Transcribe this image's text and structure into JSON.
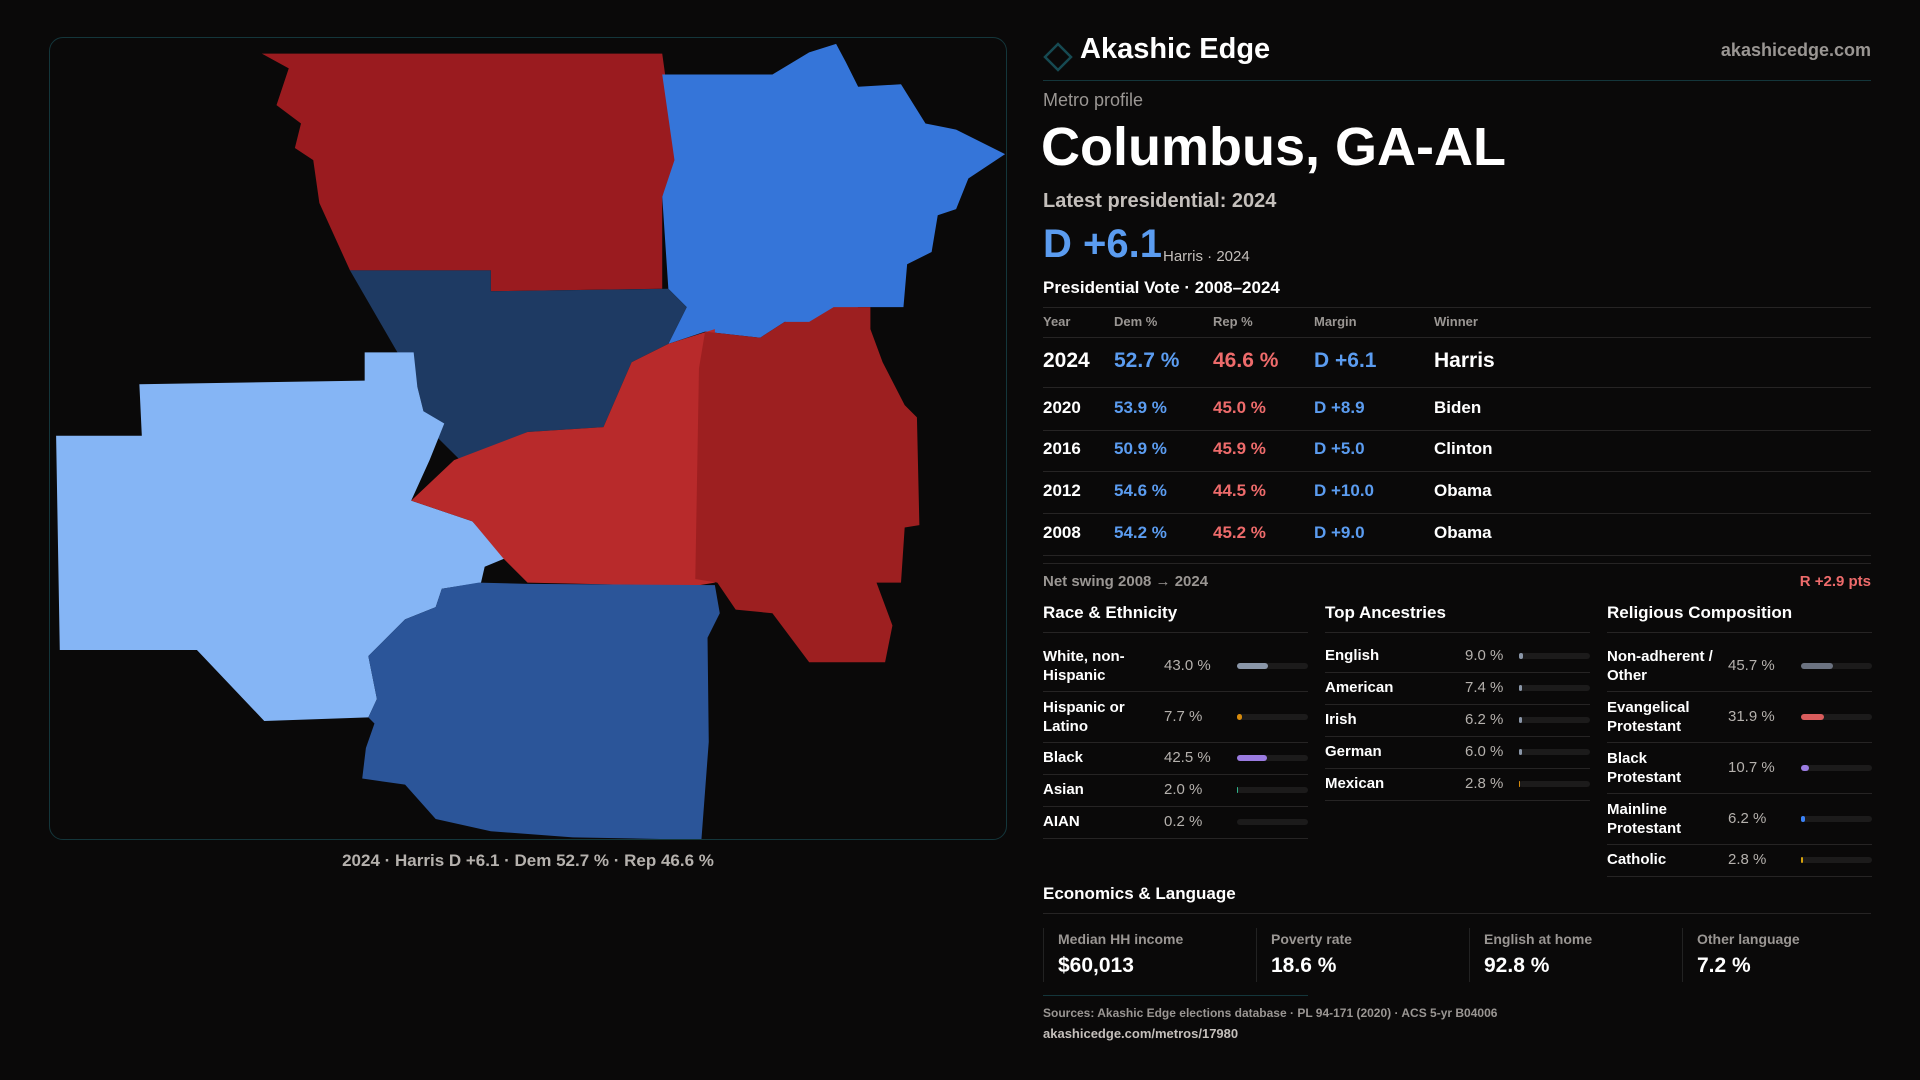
{
  "brand": {
    "name": "Akashic Edge",
    "site": "akashicedge.com"
  },
  "kicker": "Metro profile",
  "title": "Columbus, GA-AL",
  "latest_label": "Latest presidential: 2024",
  "headline": {
    "margin": "D +6.1",
    "sub": "Harris · 2024"
  },
  "vote_table": {
    "title": "Presidential Vote · 2008–2024",
    "headers": [
      "Year",
      "Dem %",
      "Rep %",
      "Margin",
      "Winner"
    ],
    "rows": [
      {
        "year": "2024",
        "dem": "52.7 %",
        "rep": "46.6 %",
        "margin": "D +6.1",
        "winner": "Harris"
      },
      {
        "year": "2020",
        "dem": "53.9 %",
        "rep": "45.0 %",
        "margin": "D +8.9",
        "winner": "Biden"
      },
      {
        "year": "2016",
        "dem": "50.9 %",
        "rep": "45.9 %",
        "margin": "D +5.0",
        "winner": "Clinton"
      },
      {
        "year": "2012",
        "dem": "54.6 %",
        "rep": "44.5 %",
        "margin": "D +10.0",
        "winner": "Obama"
      },
      {
        "year": "2008",
        "dem": "54.2 %",
        "rep": "45.2 %",
        "margin": "D +9.0",
        "winner": "Obama"
      }
    ]
  },
  "swing": {
    "label": "Net swing 2008 → 2024",
    "value": "R +2.9 pts"
  },
  "race": {
    "title": "Race & Ethnicity",
    "items": [
      {
        "label": "White, non-Hispanic",
        "value": "43.0 %",
        "pct": 43.0,
        "color": "#8a96a8"
      },
      {
        "label": "Hispanic or Latino",
        "value": "7.7 %",
        "pct": 7.7,
        "color": "#d68a0c"
      },
      {
        "label": "Black",
        "value": "42.5 %",
        "pct": 42.5,
        "color": "#9a7be0"
      },
      {
        "label": "Asian",
        "value": "2.0 %",
        "pct": 2.0,
        "color": "#2fb38a"
      },
      {
        "label": "AIAN",
        "value": "0.2 %",
        "pct": 0.2,
        "color": "#c0504d"
      }
    ]
  },
  "ancestry": {
    "title": "Top Ancestries",
    "items": [
      {
        "label": "English",
        "value": "9.0 %",
        "pct": 9.0,
        "color": "#8a96a8"
      },
      {
        "label": "American",
        "value": "7.4 %",
        "pct": 7.4,
        "color": "#8a96a8"
      },
      {
        "label": "Irish",
        "value": "6.2 %",
        "pct": 6.2,
        "color": "#8a96a8"
      },
      {
        "label": "German",
        "value": "6.0 %",
        "pct": 6.0,
        "color": "#8a96a8"
      },
      {
        "label": "Mexican",
        "value": "2.8 %",
        "pct": 2.8,
        "color": "#d68a0c"
      }
    ]
  },
  "religion": {
    "title": "Religious Composition",
    "items": [
      {
        "label": "Non-adherent / Other",
        "value": "45.7 %",
        "pct": 45.7,
        "color": "#6b7280"
      },
      {
        "label": "Evangelical Protestant",
        "value": "31.9 %",
        "pct": 31.9,
        "color": "#d95c5c"
      },
      {
        "label": "Black Protestant",
        "value": "10.7 %",
        "pct": 10.7,
        "color": "#9a7be0"
      },
      {
        "label": "Mainline Protestant",
        "value": "6.2 %",
        "pct": 6.2,
        "color": "#3b82f6"
      },
      {
        "label": "Catholic",
        "value": "2.8 %",
        "pct": 2.8,
        "color": "#d6a20c"
      }
    ]
  },
  "economics": {
    "title": "Economics & Language",
    "stats": [
      {
        "label": "Median HH income",
        "value": "$60,013"
      },
      {
        "label": "Poverty rate",
        "value": "18.6 %"
      },
      {
        "label": "English at home",
        "value": "92.8 %"
      },
      {
        "label": "Other language",
        "value": "7.2 %"
      }
    ]
  },
  "sources": "Sources: Akashic Edge elections database · PL 94-171 (2020) · ACS 5-yr B04006",
  "url": "akashicedge.com/metros/17980",
  "map": {
    "caption": "2024 · Harris D +6.1 · Dem 52.7 % · Rep 46.6 %",
    "counties": [
      {
        "color": "#9a1b1f",
        "lean": "R"
      },
      {
        "color": "#3575d9",
        "lean": "D"
      },
      {
        "color": "#1e3a63",
        "lean": "D"
      },
      {
        "color": "#85b5f5",
        "lean": "D"
      },
      {
        "color": "#b82a2b",
        "lean": "R"
      },
      {
        "color": "#9d1f20",
        "lean": "R"
      },
      {
        "color": "#2b5599",
        "lean": "D"
      }
    ]
  },
  "colors": {
    "dem": "#5b9cf0",
    "rep": "#ee6b6b",
    "accent": "#14363b"
  }
}
